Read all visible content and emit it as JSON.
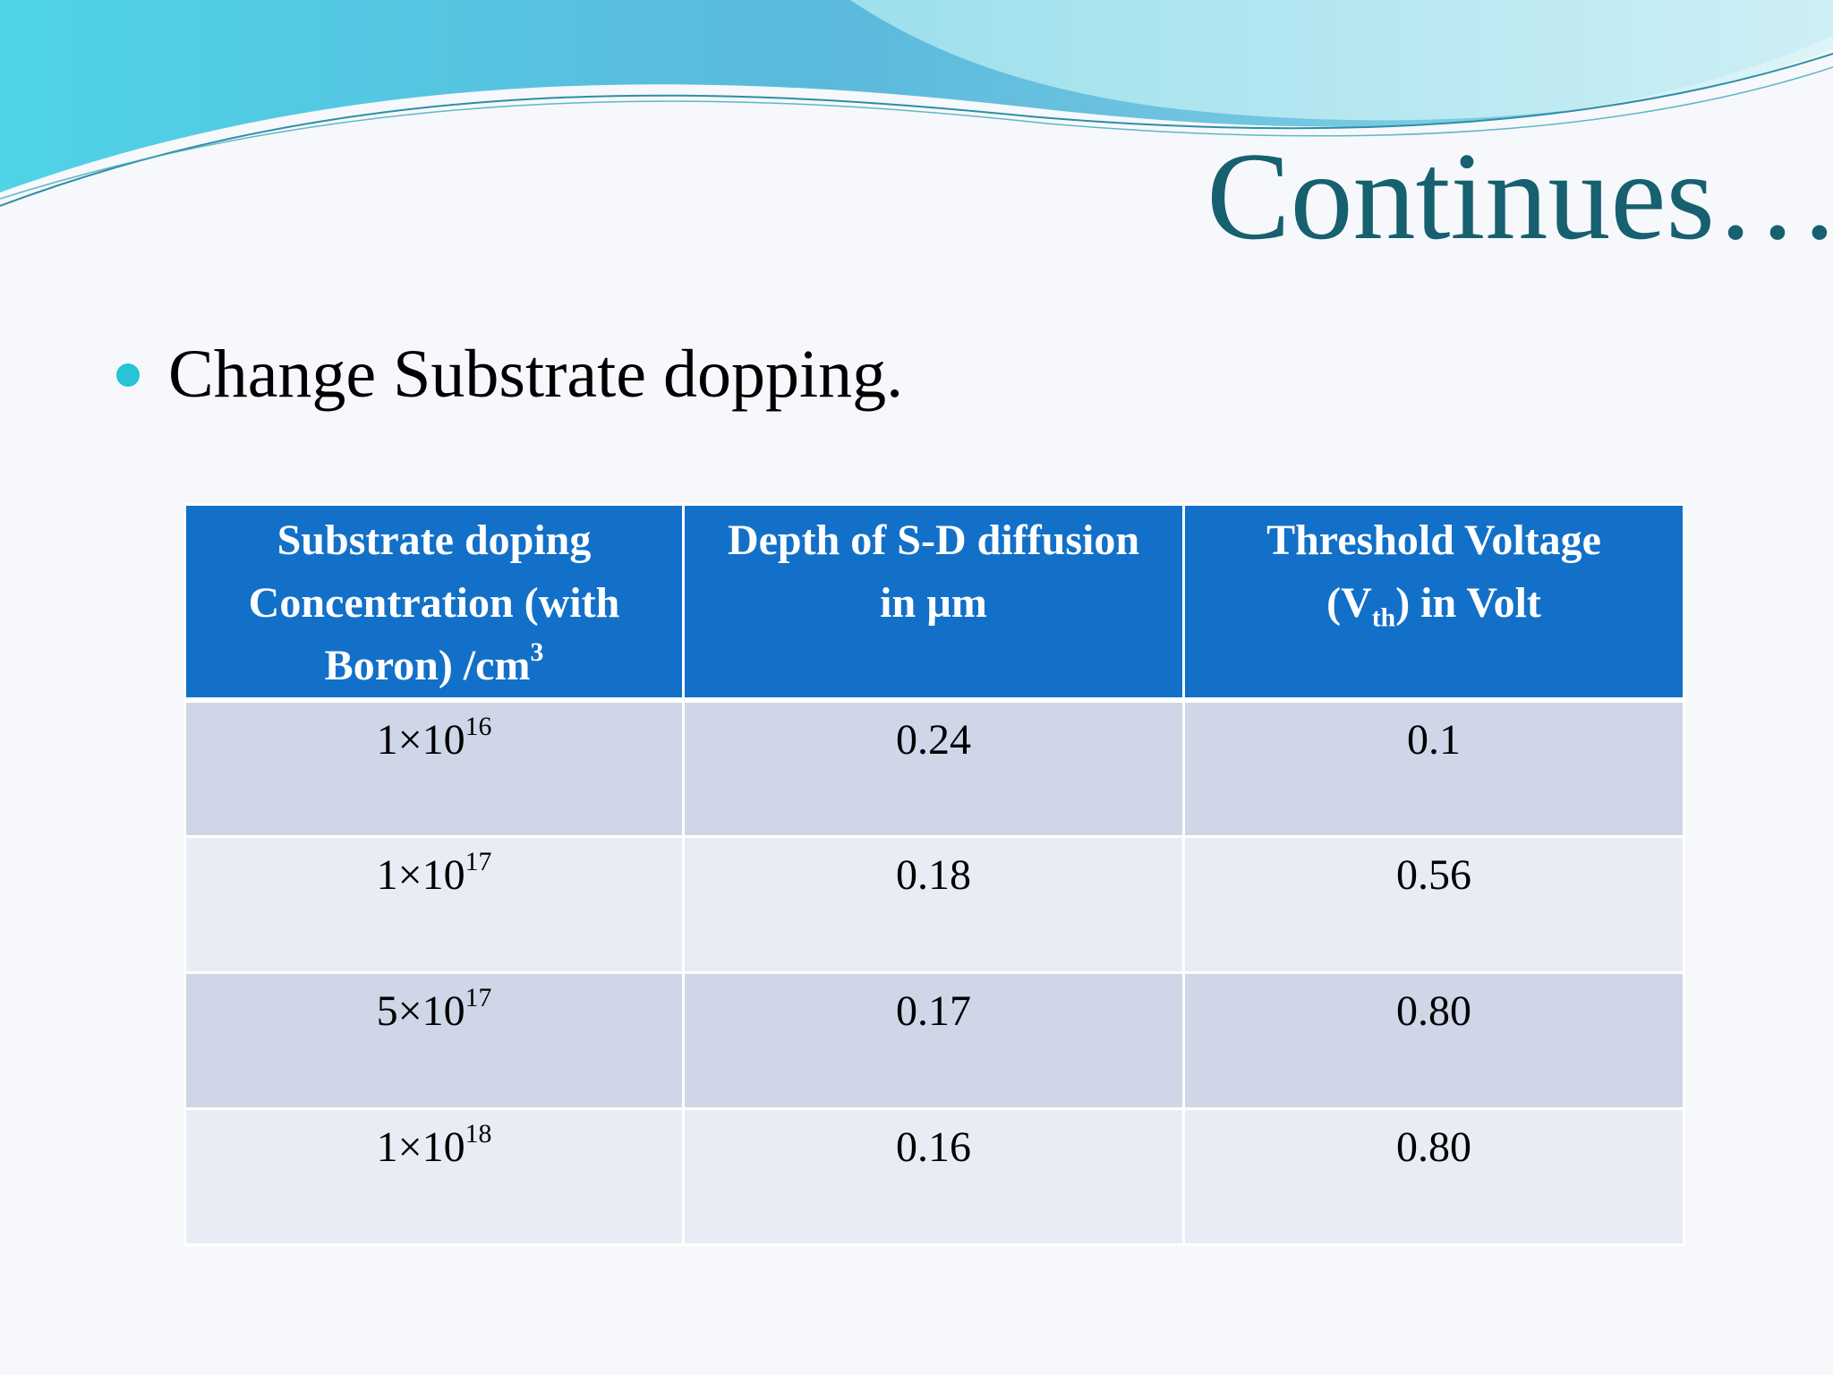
{
  "slide": {
    "title": "Continues…",
    "bullet": "Change Substrate dopping."
  },
  "table": {
    "headers": {
      "col1": {
        "line1": "Substrate doping",
        "line2": "Concentration (with",
        "line3": "Boron) /cm",
        "line3_sup": "3"
      },
      "col2": {
        "line1": "Depth of S-D diffusion",
        "line2": "in µm"
      },
      "col3": {
        "line1": "Threshold Voltage",
        "line2_pre": "(V",
        "line2_sub": "th",
        "line2_post": ") in Volt"
      }
    },
    "rows": [
      {
        "doping_base": "1×10",
        "doping_exp": "16",
        "depth": "0.24",
        "vth": "0.1"
      },
      {
        "doping_base": "1×10",
        "doping_exp": "17",
        "depth": "0.18",
        "vth": "0.56"
      },
      {
        "doping_base": "5×10",
        "doping_exp": "17",
        "depth": "0.17",
        "vth": "0.80"
      },
      {
        "doping_base": "1×10",
        "doping_exp": "18",
        "depth": "0.16",
        "vth": "0.80"
      }
    ]
  },
  "colors": {
    "title": "#17606f",
    "bullet": "#27c3d6",
    "header_bg": "#1370c8",
    "row_odd": "#cfd6e8",
    "row_even": "#e9ecf5"
  }
}
